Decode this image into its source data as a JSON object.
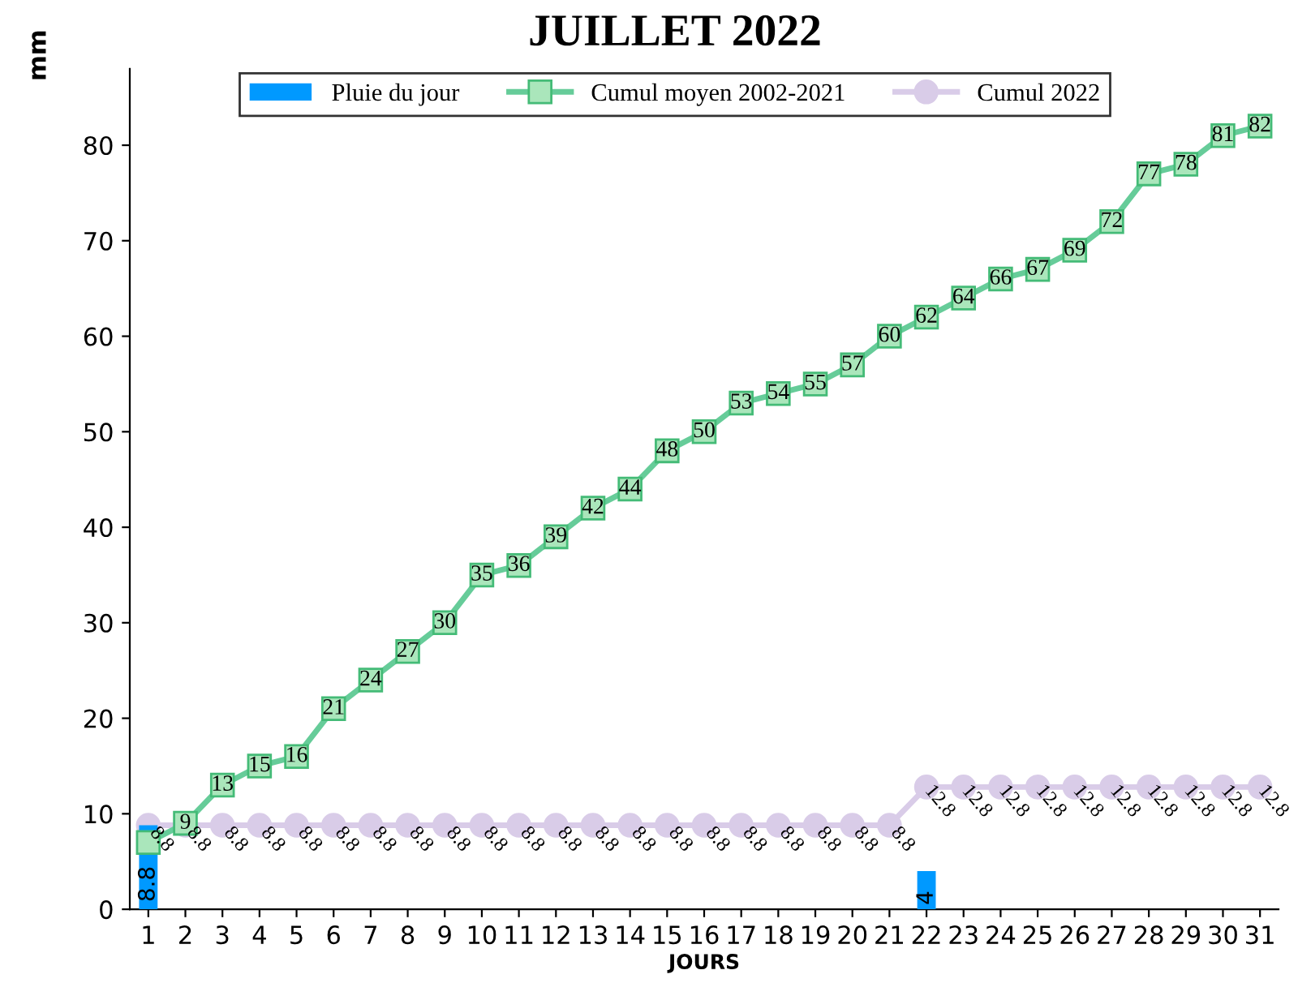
{
  "chart_data": {
    "type": "bar",
    "title": "JUILLET 2022",
    "xlabel": "JOURS",
    "ylabel": "mm",
    "categories": [
      "1",
      "2",
      "3",
      "4",
      "5",
      "6",
      "7",
      "8",
      "9",
      "10",
      "11",
      "12",
      "13",
      "14",
      "15",
      "16",
      "17",
      "18",
      "19",
      "20",
      "21",
      "22",
      "23",
      "24",
      "25",
      "26",
      "27",
      "28",
      "29",
      "30",
      "31"
    ],
    "series": [
      {
        "name": "Pluie du jour",
        "color": "#0099ff",
        "values": [
          8.8,
          null,
          null,
          null,
          null,
          null,
          null,
          null,
          null,
          null,
          null,
          null,
          null,
          null,
          null,
          null,
          null,
          null,
          null,
          null,
          null,
          4,
          null,
          null,
          null,
          null,
          null,
          null,
          null,
          null,
          null
        ],
        "value_labels": [
          "8.8",
          null,
          null,
          null,
          null,
          null,
          null,
          null,
          null,
          null,
          null,
          null,
          null,
          null,
          null,
          null,
          null,
          null,
          null,
          null,
          null,
          "4",
          null,
          null,
          null,
          null,
          null,
          null,
          null,
          null,
          null
        ]
      },
      {
        "name": "Cumul moyen 2002-2021",
        "type": "line",
        "color": "#66cc99",
        "marker": "square",
        "values": [
          7,
          9,
          13,
          15,
          16,
          21,
          24,
          27,
          30,
          35,
          36,
          39,
          42,
          44,
          48,
          50,
          53,
          54,
          55,
          57,
          60,
          62,
          64,
          66,
          67,
          69,
          72,
          77,
          78,
          81,
          82
        ],
        "value_labels": [
          null,
          "9",
          "13",
          "15",
          "16",
          "21",
          "24",
          "27",
          "30",
          "35",
          "36",
          "39",
          "42",
          "44",
          "48",
          "50",
          "53",
          "54",
          "55",
          "57",
          "60",
          "62",
          "64",
          "66",
          "67",
          "69",
          "72",
          "77",
          "78",
          "81",
          "82"
        ]
      },
      {
        "name": "Cumul 2022",
        "type": "line",
        "color": "#d9cce8",
        "marker": "circle",
        "values": [
          8.8,
          8.8,
          8.8,
          8.8,
          8.8,
          8.8,
          8.8,
          8.8,
          8.8,
          8.8,
          8.8,
          8.8,
          8.8,
          8.8,
          8.8,
          8.8,
          8.8,
          8.8,
          8.8,
          8.8,
          8.8,
          12.8,
          12.8,
          12.8,
          12.8,
          12.8,
          12.8,
          12.8,
          12.8,
          12.8,
          12.8
        ],
        "value_labels": [
          "8.8",
          "8.8",
          "8.8",
          "8.8",
          "8.8",
          "8.8",
          "8.8",
          "8.8",
          "8.8",
          "8.8",
          "8.8",
          "8.8",
          "8.8",
          "8.8",
          "8.8",
          "8.8",
          "8.8",
          "8.8",
          "8.8",
          "8.8",
          "8.8",
          "12.8",
          "12.8",
          "12.8",
          "12.8",
          "12.8",
          "12.8",
          "12.8",
          "12.8",
          "12.8",
          "12.8"
        ]
      }
    ],
    "ylim": [
      0,
      88
    ],
    "yticks": [
      0,
      10,
      20,
      30,
      40,
      50,
      60,
      70,
      80
    ],
    "grid": false,
    "legend": "top"
  }
}
